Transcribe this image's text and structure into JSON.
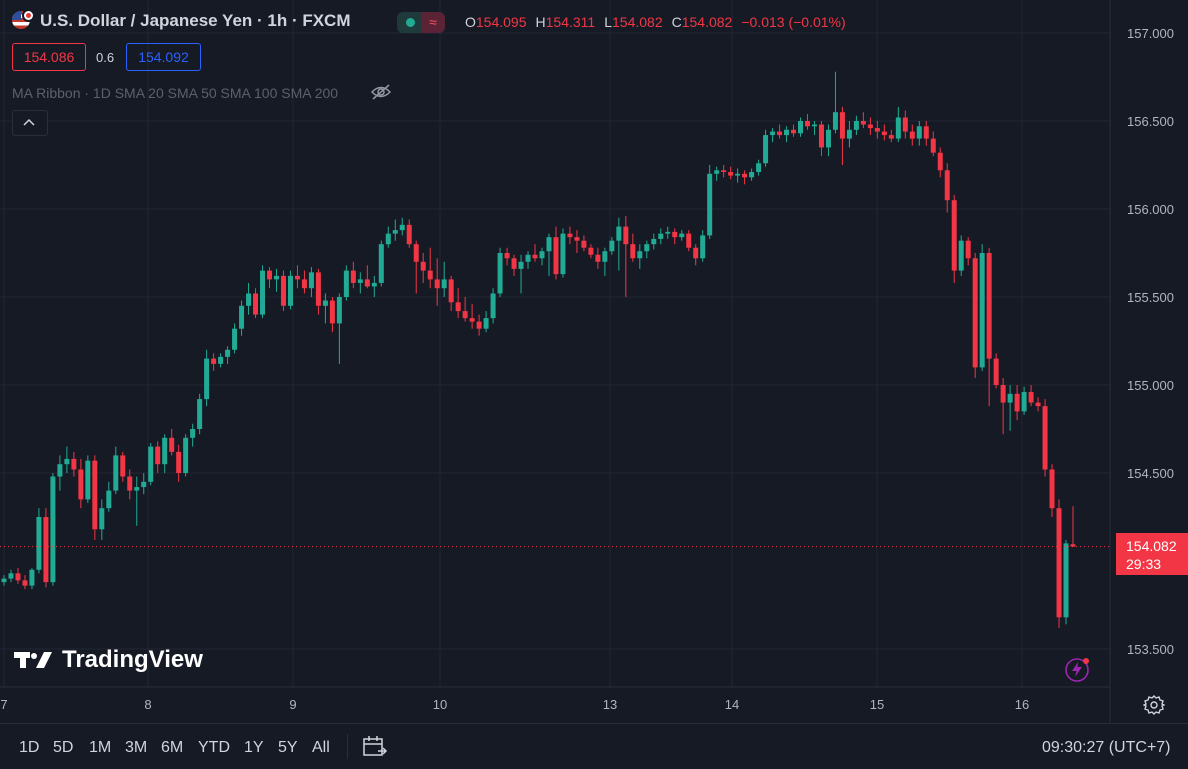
{
  "header": {
    "symbol_title": "U.S. Dollar / Japanese Yen · 1h · FXCM",
    "ohlc": {
      "o_label": "O",
      "o_value": "154.095",
      "h_label": "H",
      "h_value": "154.311",
      "l_label": "L",
      "l_value": "154.082",
      "c_label": "C",
      "c_value": "154.082",
      "change": "−0.013 (−0.01%)"
    },
    "bid": "154.086",
    "spread": "0.6",
    "ask": "154.092",
    "indicator": "MA Ribbon · 1D SMA 20 SMA 50 SMA 100 SMA 200",
    "status_icon": "wave-icon"
  },
  "colors": {
    "background": "#161a25",
    "grid": "#232733",
    "up": "#22ab94",
    "down": "#f23645",
    "axis_text": "#b2b5be"
  },
  "last_price": {
    "price": "154.082",
    "countdown": "29:33"
  },
  "watermark": "TradingView",
  "bottom": {
    "ranges": [
      "1D",
      "5D",
      "1M",
      "3M",
      "6M",
      "YTD",
      "1Y",
      "5Y",
      "All"
    ],
    "time": "09:30:27 (UTC+7)"
  },
  "chart_data": {
    "type": "candlestick",
    "title": "U.S. Dollar / Japanese Yen · 1h · FXCM",
    "ylim": [
      153.3,
      157.15
    ],
    "y_ticks": [
      "157.000",
      "156.500",
      "156.000",
      "155.500",
      "155.000",
      "154.500",
      "154.082",
      "153.500"
    ],
    "x_ticks": [
      "7",
      "8",
      "9",
      "10",
      "13",
      "14",
      "15",
      "16"
    ],
    "last_close": 154.082,
    "candles": [
      [
        153.88,
        153.92,
        153.86,
        153.9
      ],
      [
        153.9,
        153.95,
        153.88,
        153.93
      ],
      [
        153.93,
        153.96,
        153.87,
        153.89
      ],
      [
        153.89,
        153.92,
        153.84,
        153.86
      ],
      [
        153.86,
        153.96,
        153.84,
        153.95
      ],
      [
        153.95,
        154.3,
        153.93,
        154.25
      ],
      [
        154.25,
        154.3,
        153.85,
        153.88
      ],
      [
        153.88,
        154.5,
        153.86,
        154.48
      ],
      [
        154.48,
        154.6,
        154.4,
        154.55
      ],
      [
        154.55,
        154.65,
        154.5,
        154.58
      ],
      [
        154.58,
        154.62,
        154.48,
        154.52
      ],
      [
        154.52,
        154.58,
        154.3,
        154.35
      ],
      [
        154.35,
        154.6,
        154.33,
        154.57
      ],
      [
        154.57,
        154.6,
        154.12,
        154.18
      ],
      [
        154.18,
        154.35,
        154.12,
        154.3
      ],
      [
        154.3,
        154.45,
        154.28,
        154.4
      ],
      [
        154.4,
        154.65,
        154.38,
        154.6
      ],
      [
        154.6,
        154.62,
        154.45,
        154.48
      ],
      [
        154.48,
        154.52,
        154.35,
        154.4
      ],
      [
        154.4,
        154.48,
        154.2,
        154.42
      ],
      [
        154.42,
        154.5,
        154.38,
        154.45
      ],
      [
        154.45,
        154.67,
        154.43,
        154.65
      ],
      [
        154.65,
        154.68,
        154.5,
        154.55
      ],
      [
        154.55,
        154.72,
        154.5,
        154.7
      ],
      [
        154.7,
        154.75,
        154.6,
        154.62
      ],
      [
        154.62,
        154.66,
        154.45,
        154.5
      ],
      [
        154.5,
        154.72,
        154.48,
        154.7
      ],
      [
        154.7,
        154.78,
        154.65,
        154.75
      ],
      [
        154.75,
        154.95,
        154.72,
        154.92
      ],
      [
        154.92,
        155.2,
        154.88,
        155.15
      ],
      [
        155.15,
        155.18,
        155.08,
        155.12
      ],
      [
        155.12,
        155.18,
        155.1,
        155.16
      ],
      [
        155.16,
        155.22,
        155.12,
        155.2
      ],
      [
        155.2,
        155.35,
        155.18,
        155.32
      ],
      [
        155.32,
        155.48,
        155.28,
        155.45
      ],
      [
        155.45,
        155.58,
        155.4,
        155.52
      ],
      [
        155.52,
        155.55,
        155.38,
        155.4
      ],
      [
        155.4,
        155.68,
        155.38,
        155.65
      ],
      [
        155.65,
        155.67,
        155.55,
        155.6
      ],
      [
        155.6,
        155.66,
        155.53,
        155.62
      ],
      [
        155.62,
        155.65,
        155.42,
        155.45
      ],
      [
        155.45,
        155.65,
        155.43,
        155.62
      ],
      [
        155.62,
        155.68,
        155.55,
        155.6
      ],
      [
        155.6,
        155.65,
        155.52,
        155.55
      ],
      [
        155.55,
        155.67,
        155.5,
        155.64
      ],
      [
        155.64,
        155.66,
        155.4,
        155.45
      ],
      [
        155.45,
        155.52,
        155.35,
        155.48
      ],
      [
        155.48,
        155.5,
        155.3,
        155.35
      ],
      [
        155.35,
        155.52,
        155.12,
        155.5
      ],
      [
        155.5,
        155.68,
        155.48,
        155.65
      ],
      [
        155.65,
        155.7,
        155.55,
        155.58
      ],
      [
        155.58,
        155.64,
        155.52,
        155.6
      ],
      [
        155.6,
        155.68,
        155.55,
        155.56
      ],
      [
        155.56,
        155.62,
        155.5,
        155.58
      ],
      [
        155.58,
        155.82,
        155.56,
        155.8
      ],
      [
        155.8,
        155.9,
        155.78,
        155.86
      ],
      [
        155.86,
        155.94,
        155.82,
        155.88
      ],
      [
        155.88,
        155.95,
        155.85,
        155.91
      ],
      [
        155.91,
        155.94,
        155.78,
        155.8
      ],
      [
        155.8,
        155.82,
        155.52,
        155.7
      ],
      [
        155.7,
        155.75,
        155.58,
        155.65
      ],
      [
        155.65,
        155.78,
        155.55,
        155.6
      ],
      [
        155.6,
        155.72,
        155.45,
        155.55
      ],
      [
        155.55,
        155.7,
        155.5,
        155.6
      ],
      [
        155.6,
        155.62,
        155.42,
        155.47
      ],
      [
        155.47,
        155.55,
        155.38,
        155.42
      ],
      [
        155.42,
        155.5,
        155.36,
        155.38
      ],
      [
        155.38,
        155.46,
        155.32,
        155.36
      ],
      [
        155.36,
        155.4,
        155.28,
        155.32
      ],
      [
        155.32,
        155.42,
        155.3,
        155.38
      ],
      [
        155.38,
        155.55,
        155.35,
        155.52
      ],
      [
        155.52,
        155.78,
        155.5,
        155.75
      ],
      [
        155.75,
        155.78,
        155.68,
        155.72
      ],
      [
        155.72,
        155.74,
        155.62,
        155.66
      ],
      [
        155.66,
        155.74,
        155.52,
        155.7
      ],
      [
        155.7,
        155.76,
        155.66,
        155.74
      ],
      [
        155.74,
        155.8,
        155.7,
        155.72
      ],
      [
        155.72,
        155.78,
        155.68,
        155.76
      ],
      [
        155.76,
        155.86,
        155.62,
        155.84
      ],
      [
        155.84,
        155.9,
        155.6,
        155.63
      ],
      [
        155.63,
        155.89,
        155.61,
        155.86
      ],
      [
        155.86,
        155.9,
        155.8,
        155.84
      ],
      [
        155.84,
        155.88,
        155.75,
        155.82
      ],
      [
        155.82,
        155.85,
        155.76,
        155.78
      ],
      [
        155.78,
        155.8,
        155.72,
        155.74
      ],
      [
        155.74,
        155.78,
        155.66,
        155.7
      ],
      [
        155.7,
        155.78,
        155.62,
        155.76
      ],
      [
        155.76,
        155.84,
        155.74,
        155.82
      ],
      [
        155.82,
        155.95,
        155.65,
        155.9
      ],
      [
        155.9,
        155.96,
        155.5,
        155.8
      ],
      [
        155.8,
        155.86,
        155.7,
        155.72
      ],
      [
        155.72,
        155.8,
        155.66,
        155.76
      ],
      [
        155.76,
        155.82,
        155.72,
        155.8
      ],
      [
        155.8,
        155.86,
        155.77,
        155.83
      ],
      [
        155.83,
        155.89,
        155.8,
        155.86
      ],
      [
        155.86,
        155.9,
        155.83,
        155.87
      ],
      [
        155.87,
        155.89,
        155.8,
        155.84
      ],
      [
        155.84,
        155.88,
        155.82,
        155.86
      ],
      [
        155.86,
        155.88,
        155.76,
        155.78
      ],
      [
        155.78,
        155.8,
        155.68,
        155.72
      ],
      [
        155.72,
        155.88,
        155.7,
        155.85
      ],
      [
        155.85,
        156.25,
        155.83,
        156.2
      ],
      [
        156.2,
        156.24,
        156.16,
        156.22
      ],
      [
        156.22,
        156.25,
        156.18,
        156.21
      ],
      [
        156.21,
        156.24,
        156.17,
        156.19
      ],
      [
        156.19,
        156.23,
        156.15,
        156.2
      ],
      [
        156.2,
        156.22,
        156.14,
        156.18
      ],
      [
        156.18,
        156.23,
        156.16,
        156.21
      ],
      [
        156.21,
        156.28,
        156.19,
        156.26
      ],
      [
        156.26,
        156.45,
        156.24,
        156.42
      ],
      [
        156.42,
        156.46,
        156.38,
        156.44
      ],
      [
        156.44,
        156.48,
        156.4,
        156.42
      ],
      [
        156.42,
        156.47,
        156.38,
        156.45
      ],
      [
        156.45,
        156.48,
        156.41,
        156.43
      ],
      [
        156.43,
        156.52,
        156.41,
        156.5
      ],
      [
        156.5,
        156.54,
        156.45,
        156.47
      ],
      [
        156.47,
        156.5,
        156.42,
        156.48
      ],
      [
        156.48,
        156.5,
        156.3,
        156.35
      ],
      [
        156.35,
        156.48,
        156.3,
        156.45
      ],
      [
        156.45,
        156.78,
        156.43,
        156.55
      ],
      [
        156.55,
        156.58,
        156.25,
        156.4
      ],
      [
        156.4,
        156.5,
        156.35,
        156.45
      ],
      [
        156.45,
        156.53,
        156.42,
        156.5
      ],
      [
        156.5,
        156.55,
        156.46,
        156.48
      ],
      [
        156.48,
        156.52,
        156.42,
        156.46
      ],
      [
        156.46,
        156.5,
        156.4,
        156.44
      ],
      [
        156.44,
        156.48,
        156.39,
        156.42
      ],
      [
        156.42,
        156.45,
        156.38,
        156.4
      ],
      [
        156.4,
        156.58,
        156.38,
        156.52
      ],
      [
        156.52,
        156.56,
        156.4,
        156.44
      ],
      [
        156.44,
        156.48,
        156.36,
        156.4
      ],
      [
        156.4,
        156.5,
        156.36,
        156.47
      ],
      [
        156.47,
        156.5,
        156.36,
        156.4
      ],
      [
        156.4,
        156.44,
        156.3,
        156.32
      ],
      [
        156.32,
        156.35,
        156.18,
        156.22
      ],
      [
        156.22,
        156.26,
        155.98,
        156.05
      ],
      [
        156.05,
        156.08,
        155.58,
        155.65
      ],
      [
        155.65,
        155.85,
        155.62,
        155.82
      ],
      [
        155.82,
        155.84,
        155.68,
        155.72
      ],
      [
        155.72,
        155.75,
        155.04,
        155.1
      ],
      [
        155.1,
        155.8,
        155.08,
        155.75
      ],
      [
        155.75,
        155.78,
        154.88,
        155.15
      ],
      [
        155.15,
        155.18,
        154.98,
        155.0
      ],
      [
        155.0,
        155.04,
        154.72,
        154.9
      ],
      [
        154.9,
        155.0,
        154.74,
        154.95
      ],
      [
        154.95,
        155.0,
        154.8,
        154.85
      ],
      [
        154.85,
        154.99,
        154.83,
        154.96
      ],
      [
        154.96,
        155.0,
        154.88,
        154.9
      ],
      [
        154.9,
        154.93,
        154.85,
        154.88
      ],
      [
        154.88,
        154.92,
        154.48,
        154.52
      ],
      [
        154.52,
        154.55,
        154.25,
        154.3
      ],
      [
        154.3,
        154.35,
        153.62,
        153.68
      ],
      [
        153.68,
        154.12,
        153.64,
        154.1
      ],
      [
        154.095,
        154.311,
        154.082,
        154.082
      ]
    ]
  }
}
